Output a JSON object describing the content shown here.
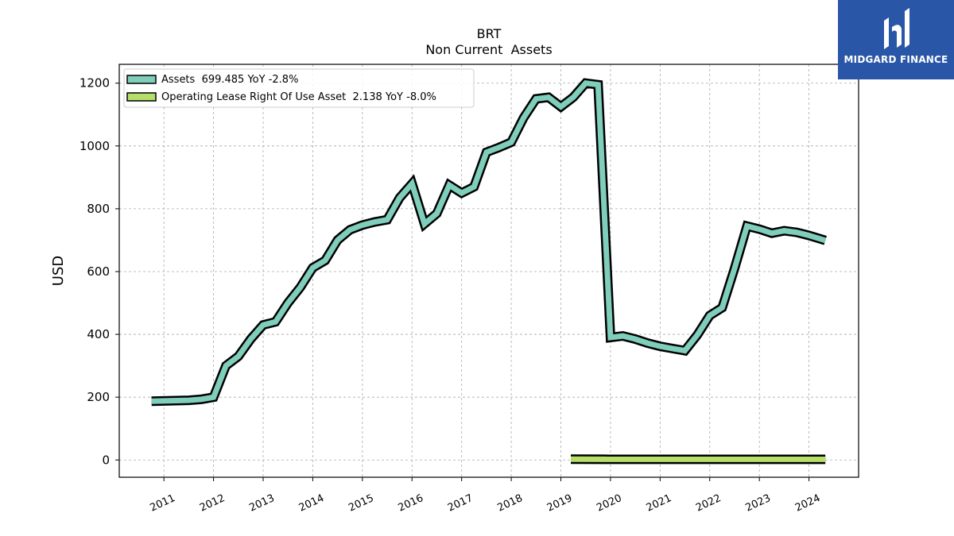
{
  "chart_data": {
    "type": "line",
    "title": "BRT",
    "subtitle": "Non Current  Assets",
    "xlabel": "",
    "ylabel": "USD",
    "ylim": [
      -55,
      1260
    ],
    "xlim": [
      2010.1,
      2025.0
    ],
    "yticks": [
      0,
      200,
      400,
      600,
      800,
      1000,
      1200
    ],
    "xticks": [
      2011,
      2012,
      2013,
      2014,
      2015,
      2016,
      2017,
      2018,
      2019,
      2020,
      2021,
      2022,
      2023,
      2024
    ],
    "grid": true,
    "legend_position": "top-left",
    "series": [
      {
        "name": "Assets  699.485 YoY -2.8%",
        "color": "#7fcdbb",
        "x": [
          2010.75,
          2011.0,
          2011.25,
          2011.5,
          2011.75,
          2012.0,
          2012.25,
          2012.5,
          2012.75,
          2013.0,
          2013.25,
          2013.5,
          2013.75,
          2014.0,
          2014.25,
          2014.5,
          2014.75,
          2015.0,
          2015.25,
          2015.5,
          2015.75,
          2016.0,
          2016.25,
          2016.5,
          2016.75,
          2017.0,
          2017.25,
          2017.5,
          2017.75,
          2018.0,
          2018.25,
          2018.5,
          2018.75,
          2019.0,
          2019.25,
          2019.5,
          2019.75,
          2020.0,
          2020.25,
          2020.5,
          2020.75,
          2021.0,
          2021.25,
          2021.5,
          2021.75,
          2022.0,
          2022.25,
          2022.5,
          2022.75,
          2023.0,
          2023.25,
          2023.5,
          2023.75,
          2024.0,
          2024.33
        ],
        "values": [
          187,
          188,
          189,
          190,
          193,
          200,
          300,
          330,
          385,
          430,
          440,
          500,
          550,
          612,
          635,
          700,
          733,
          748,
          758,
          765,
          835,
          880,
          752,
          785,
          875,
          850,
          870,
          980,
          995,
          1012,
          1090,
          1150,
          1155,
          1125,
          1155,
          1200,
          1195,
          390,
          395,
          385,
          372,
          362,
          355,
          348,
          398,
          460,
          485,
          610,
          745,
          735,
          722,
          730,
          725,
          715,
          699
        ]
      },
      {
        "name": "Operating Lease Right Of Use Asset  2.138 YoY -8.0%",
        "color": "#b5de6a",
        "x": [
          2019.2,
          2024.33
        ],
        "values": [
          2.3,
          2.138
        ]
      }
    ]
  },
  "logo": {
    "text": "MIDGARD FINANCE",
    "bg_color": "#2a56a8"
  }
}
